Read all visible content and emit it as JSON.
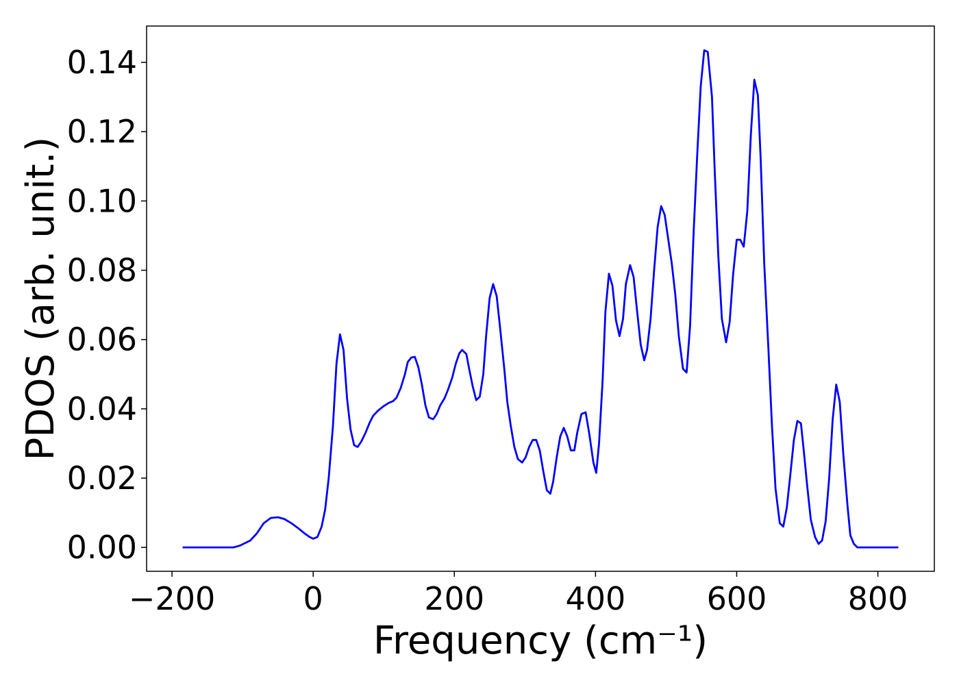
{
  "chart_data": {
    "type": "line",
    "x_label": "Frequency (cm⁻¹)",
    "y_label": "PDOS (arb. unit.)",
    "color": "#0000ff",
    "xlim": [
      -236,
      880
    ],
    "ylim": [
      -0.0069,
      0.1505
    ],
    "xticks": [
      {
        "value": -200,
        "label": "−200"
      },
      0,
      200,
      400,
      600,
      800
    ],
    "yticks": [
      {
        "value": 0,
        "label": "0.00"
      },
      {
        "value": 0.02,
        "label": "0.02"
      },
      {
        "value": 0.04,
        "label": "0.04"
      },
      {
        "value": 0.06,
        "label": "0.06"
      },
      {
        "value": 0.08,
        "label": "0.08"
      },
      {
        "value": 0.1,
        "label": "0.10"
      },
      {
        "value": 0.12,
        "label": "0.12"
      },
      {
        "value": 0.14,
        "label": "0.14"
      }
    ],
    "x": [
      -185,
      -113,
      -104,
      -89,
      -80,
      -70,
      -60,
      -50,
      -41,
      -31,
      -21,
      -12,
      -5,
      0,
      6,
      12,
      17,
      22,
      28,
      33,
      38,
      43,
      48,
      53,
      58,
      63,
      68,
      74,
      80,
      85,
      92,
      100,
      107,
      113,
      118,
      124,
      130,
      134,
      139,
      144,
      149,
      154,
      159,
      164,
      170,
      175,
      180,
      186,
      191,
      197,
      202,
      207,
      211,
      217,
      221,
      226,
      231,
      236,
      241,
      245,
      250,
      255,
      260,
      265,
      271,
      275,
      280,
      285,
      290,
      296,
      301,
      306,
      311,
      316,
      321,
      326,
      331,
      336,
      340,
      345,
      350,
      355,
      360,
      365,
      370,
      374,
      380,
      386,
      391,
      397,
      401,
      405,
      410,
      414,
      419,
      424,
      429,
      434,
      439,
      443,
      449,
      454,
      459,
      464,
      469,
      473,
      478,
      483,
      488,
      493,
      498,
      503,
      508,
      513,
      518,
      524,
      529,
      534,
      539,
      544,
      549,
      554,
      559,
      565,
      569,
      574,
      579,
      585,
      590,
      595,
      600,
      605,
      610,
      615,
      620,
      625,
      630,
      634,
      639,
      645,
      650,
      655,
      661,
      666,
      671,
      676,
      681,
      686,
      691,
      695,
      700,
      705,
      711,
      716,
      721,
      726,
      731,
      736,
      741,
      746,
      751,
      757,
      761,
      766,
      771,
      776,
      829
    ],
    "values": [
      0,
      0,
      0.0005,
      0.002,
      0.004,
      0.007,
      0.0085,
      0.0087,
      0.0082,
      0.007,
      0.0055,
      0.004,
      0.003,
      0.0025,
      0.003,
      0.006,
      0.011,
      0.02,
      0.035,
      0.053,
      0.0615,
      0.057,
      0.043,
      0.034,
      0.0295,
      0.029,
      0.0305,
      0.033,
      0.036,
      0.038,
      0.0395,
      0.0408,
      0.0417,
      0.0422,
      0.0432,
      0.046,
      0.05,
      0.0535,
      0.0548,
      0.055,
      0.052,
      0.047,
      0.041,
      0.0375,
      0.037,
      0.0385,
      0.041,
      0.043,
      0.0455,
      0.049,
      0.053,
      0.056,
      0.057,
      0.0558,
      0.0515,
      0.0465,
      0.0425,
      0.0435,
      0.05,
      0.061,
      0.072,
      0.076,
      0.0725,
      0.063,
      0.051,
      0.042,
      0.035,
      0.029,
      0.0255,
      0.0245,
      0.026,
      0.029,
      0.031,
      0.031,
      0.028,
      0.022,
      0.0165,
      0.0155,
      0.019,
      0.026,
      0.032,
      0.0345,
      0.032,
      0.028,
      0.028,
      0.033,
      0.0385,
      0.039,
      0.033,
      0.0245,
      0.0215,
      0.03,
      0.048,
      0.068,
      0.079,
      0.0755,
      0.0655,
      0.061,
      0.066,
      0.076,
      0.0815,
      0.078,
      0.068,
      0.0585,
      0.054,
      0.057,
      0.066,
      0.08,
      0.0925,
      0.0985,
      0.096,
      0.089,
      0.082,
      0.073,
      0.061,
      0.0515,
      0.0505,
      0.064,
      0.091,
      0.113,
      0.133,
      0.1435,
      0.143,
      0.13,
      0.108,
      0.084,
      0.066,
      0.0592,
      0.065,
      0.079,
      0.0888,
      0.0888,
      0.0868,
      0.097,
      0.119,
      0.135,
      0.1305,
      0.112,
      0.082,
      0.057,
      0.035,
      0.017,
      0.007,
      0.006,
      0.0115,
      0.021,
      0.031,
      0.0365,
      0.0358,
      0.028,
      0.0175,
      0.008,
      0.003,
      0.001,
      0.002,
      0.0075,
      0.02,
      0.037,
      0.047,
      0.042,
      0.027,
      0.012,
      0.0035,
      0.001,
      0,
      0,
      0
    ]
  }
}
